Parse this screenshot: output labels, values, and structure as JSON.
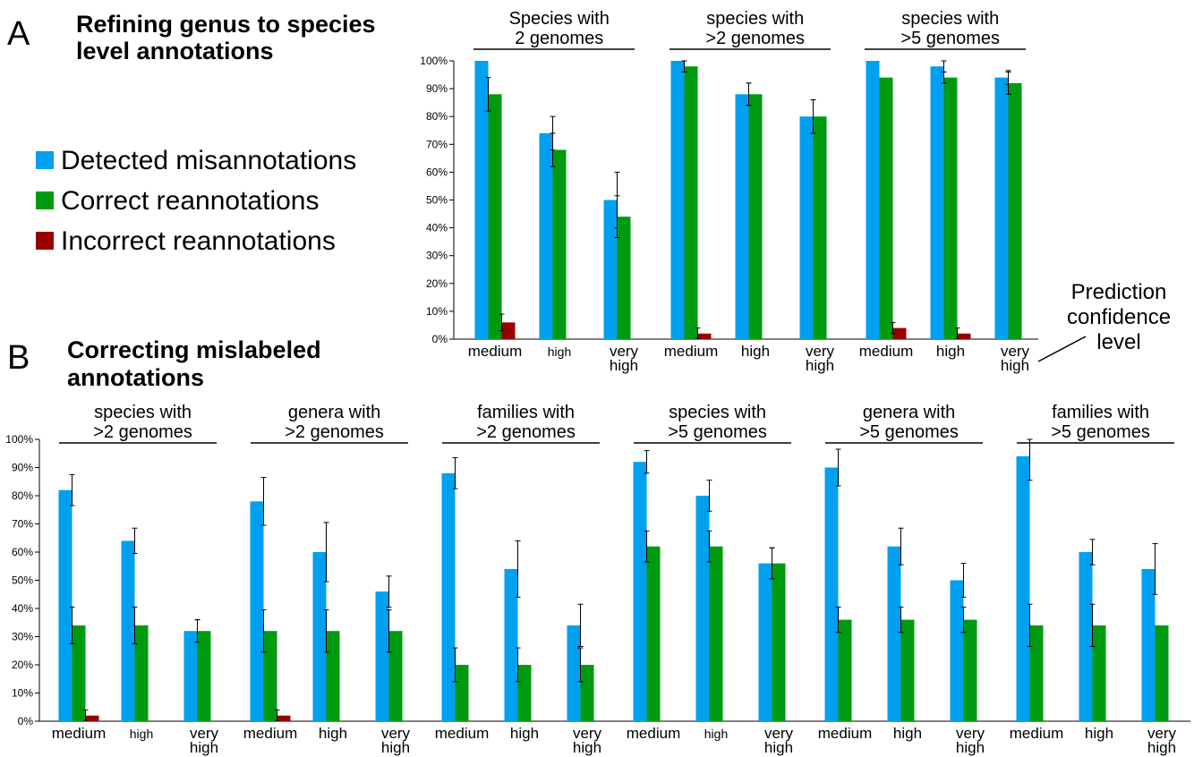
{
  "panel_a": {
    "letter": "A",
    "title_lines": [
      "Refining genus to species",
      "level annotations"
    ]
  },
  "panel_b": {
    "letter": "B",
    "title_lines": [
      "Correcting mislabeled",
      "annotations"
    ]
  },
  "legend": [
    {
      "label": "Detected misannotations",
      "color": "#00a0f0"
    },
    {
      "label": "Correct reannotations",
      "color": "#009a10"
    },
    {
      "label": "Incorrect reannotations",
      "color": "#9a0000"
    }
  ],
  "confidence_label_lines": [
    "Prediction",
    "confidence",
    "level"
  ],
  "chart_data": [
    {
      "type": "bar",
      "panel": "A",
      "ylim": [
        0,
        100
      ],
      "y_ticks": [
        "0%",
        "10%",
        "20%",
        "30%",
        "40%",
        "50%",
        "60%",
        "70%",
        "80%",
        "90%",
        "100%"
      ],
      "groups": [
        {
          "label_lines": [
            "Species with",
            "2 genomes"
          ],
          "categories": [
            {
              "label_lines": [
                "medium"
              ],
              "values": [
                100,
                88,
                6
              ],
              "errors": [
                0,
                6,
                3
              ]
            },
            {
              "label_lines": [
                "high"
              ],
              "values": [
                74,
                68,
                0
              ],
              "errors": [
                6,
                6,
                0
              ]
            },
            {
              "label_lines": [
                "very",
                "high"
              ],
              "values": [
                50,
                44,
                0
              ],
              "errors": [
                10,
                7.5,
                0
              ]
            }
          ]
        },
        {
          "label_lines": [
            "species with",
            ">2 genomes"
          ],
          "categories": [
            {
              "label_lines": [
                "medium"
              ],
              "values": [
                100,
                98,
                2
              ],
              "errors": [
                0,
                2,
                2
              ]
            },
            {
              "label_lines": [
                "high"
              ],
              "values": [
                88,
                88,
                0
              ],
              "errors": [
                4,
                4,
                0
              ]
            },
            {
              "label_lines": [
                "very",
                "high"
              ],
              "values": [
                80,
                80,
                0
              ],
              "errors": [
                6,
                6,
                0
              ]
            }
          ]
        },
        {
          "label_lines": [
            "species with",
            ">5 genomes"
          ],
          "categories": [
            {
              "label_lines": [
                "medium"
              ],
              "values": [
                100,
                94,
                4
              ],
              "errors": [
                0,
                0,
                2
              ]
            },
            {
              "label_lines": [
                "high"
              ],
              "values": [
                98,
                94,
                2
              ],
              "errors": [
                2,
                2,
                2
              ]
            },
            {
              "label_lines": [
                "very",
                "high"
              ],
              "values": [
                94,
                92,
                0
              ],
              "errors": [
                2.5,
                4,
                0
              ]
            }
          ]
        }
      ]
    },
    {
      "type": "bar",
      "panel": "B",
      "ylim": [
        0,
        100
      ],
      "y_ticks": [
        "0%",
        "10%",
        "20%",
        "30%",
        "40%",
        "50%",
        "60%",
        "70%",
        "80%",
        "90%",
        "100%"
      ],
      "groups": [
        {
          "label_lines": [
            "species with",
            ">2 genomes"
          ],
          "categories": [
            {
              "label_lines": [
                "medium"
              ],
              "values": [
                82,
                34,
                2
              ],
              "errors": [
                5.5,
                6.5,
                2
              ]
            },
            {
              "label_lines": [
                "high"
              ],
              "values": [
                64,
                34,
                0
              ],
              "errors": [
                4.5,
                6.5,
                0
              ]
            },
            {
              "label_lines": [
                "very",
                "high"
              ],
              "values": [
                32,
                32,
                0
              ],
              "errors": [
                4,
                4,
                0
              ]
            }
          ]
        },
        {
          "label_lines": [
            "genera with",
            ">2 genomes"
          ],
          "categories": [
            {
              "label_lines": [
                "medium"
              ],
              "values": [
                78,
                32,
                2
              ],
              "errors": [
                8.5,
                7.5,
                2
              ]
            },
            {
              "label_lines": [
                "high"
              ],
              "values": [
                60,
                32,
                0
              ],
              "errors": [
                10.5,
                7.5,
                0
              ]
            },
            {
              "label_lines": [
                "very",
                "high"
              ],
              "values": [
                46,
                32,
                0
              ],
              "errors": [
                5.5,
                7.5,
                0
              ]
            }
          ]
        },
        {
          "label_lines": [
            "families with",
            ">2 genomes"
          ],
          "categories": [
            {
              "label_lines": [
                "medium"
              ],
              "values": [
                88,
                20,
                0
              ],
              "errors": [
                5.5,
                6,
                0
              ]
            },
            {
              "label_lines": [
                "high"
              ],
              "values": [
                54,
                20,
                0
              ],
              "errors": [
                10,
                6,
                0
              ]
            },
            {
              "label_lines": [
                "very",
                "high"
              ],
              "values": [
                34,
                20,
                0
              ],
              "errors": [
                7.5,
                6,
                0
              ]
            }
          ]
        },
        {
          "label_lines": [
            "species with",
            ">5 genomes"
          ],
          "categories": [
            {
              "label_lines": [
                "medium"
              ],
              "values": [
                92,
                62,
                0
              ],
              "errors": [
                4,
                5.5,
                0
              ]
            },
            {
              "label_lines": [
                "high"
              ],
              "values": [
                80,
                62,
                0
              ],
              "errors": [
                5.5,
                5.5,
                0
              ]
            },
            {
              "label_lines": [
                "very",
                "high"
              ],
              "values": [
                56,
                56,
                0
              ],
              "errors": [
                5.5,
                5.5,
                0
              ]
            }
          ]
        },
        {
          "label_lines": [
            "genera with",
            ">5 genomes"
          ],
          "categories": [
            {
              "label_lines": [
                "medium"
              ],
              "values": [
                90,
                36,
                0
              ],
              "errors": [
                6.5,
                4.5,
                0
              ]
            },
            {
              "label_lines": [
                "high"
              ],
              "values": [
                62,
                36,
                0
              ],
              "errors": [
                6.5,
                4.5,
                0
              ]
            },
            {
              "label_lines": [
                "very",
                "high"
              ],
              "values": [
                50,
                36,
                0
              ],
              "errors": [
                6,
                4.5,
                0
              ]
            }
          ]
        },
        {
          "label_lines": [
            "families with",
            ">5 genomes"
          ],
          "categories": [
            {
              "label_lines": [
                "medium"
              ],
              "values": [
                94,
                34,
                0
              ],
              "errors": [
                8.5,
                7.5,
                0
              ]
            },
            {
              "label_lines": [
                "high"
              ],
              "values": [
                60,
                34,
                0
              ],
              "errors": [
                4.5,
                7.5,
                0
              ]
            },
            {
              "label_lines": [
                "very",
                "high"
              ],
              "values": [
                54,
                34,
                0
              ],
              "errors": [
                9,
                0,
                0
              ]
            }
          ]
        }
      ]
    }
  ]
}
